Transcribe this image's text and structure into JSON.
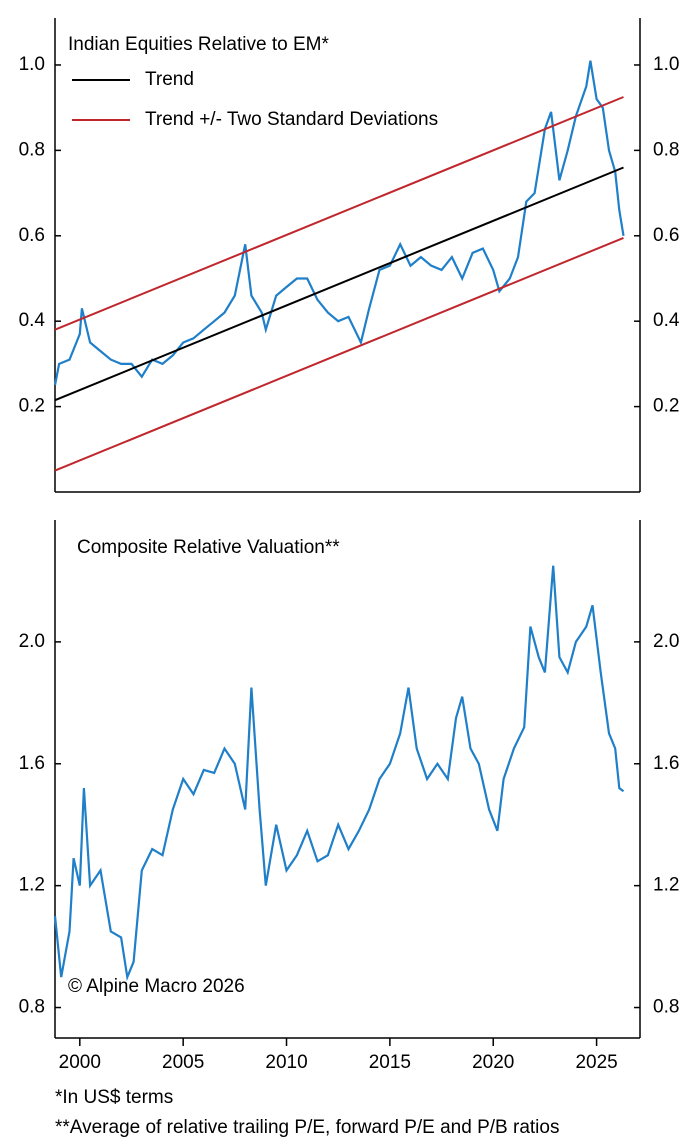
{
  "chart_data": [
    {
      "type": "line",
      "title": "Indian Equities Relative to EM*",
      "xlim": [
        1998.8,
        2027.1
      ],
      "ylim": [
        0,
        1.11
      ],
      "yticks": [
        0.2,
        0.4,
        0.6,
        0.8,
        {
          "value": 1,
          "label": "1.0"
        }
      ],
      "legend": "top-left",
      "series": [
        {
          "color": "#1f7fc8",
          "x": [
            1998.8,
            1999.0,
            1999.5,
            2000.0,
            2000.1,
            2000.5,
            2001.0,
            2001.5,
            2002.0,
            2002.5,
            2003.0,
            2003.5,
            2004.0,
            2004.5,
            2005.0,
            2005.5,
            2006.0,
            2006.5,
            2007.0,
            2007.5,
            2008.0,
            2008.3,
            2008.8,
            2009.0,
            2009.5,
            2010.0,
            2010.5,
            2011.0,
            2011.5,
            2012.0,
            2012.5,
            2013.0,
            2013.6,
            2014.0,
            2014.5,
            2015.0,
            2015.5,
            2016.0,
            2016.5,
            2017.0,
            2017.5,
            2018.0,
            2018.5,
            2019.0,
            2019.5,
            2020.0,
            2020.3,
            2020.8,
            2021.2,
            2021.6,
            2022.0,
            2022.5,
            2022.8,
            2023.2,
            2023.6,
            2024.0,
            2024.5,
            2024.7,
            2025.0,
            2025.3,
            2025.6,
            2025.9,
            2026.1,
            2026.3
          ],
          "values": [
            0.25,
            0.3,
            0.31,
            0.37,
            0.43,
            0.35,
            0.33,
            0.31,
            0.3,
            0.3,
            0.27,
            0.31,
            0.3,
            0.32,
            0.35,
            0.36,
            0.38,
            0.4,
            0.42,
            0.46,
            0.58,
            0.46,
            0.42,
            0.38,
            0.46,
            0.48,
            0.5,
            0.5,
            0.45,
            0.42,
            0.4,
            0.41,
            0.35,
            0.43,
            0.52,
            0.53,
            0.58,
            0.53,
            0.55,
            0.53,
            0.52,
            0.55,
            0.5,
            0.56,
            0.57,
            0.52,
            0.47,
            0.5,
            0.55,
            0.68,
            0.7,
            0.85,
            0.89,
            0.73,
            0.8,
            0.88,
            0.95,
            1.01,
            0.92,
            0.9,
            0.8,
            0.75,
            0.66,
            0.6
          ]
        },
        {
          "name": "Trend",
          "color": "#000000",
          "x": [
            1998.8,
            2026.3
          ],
          "values": [
            0.215,
            0.76
          ]
        },
        {
          "name": "Trend +/- Two Standard Deviations",
          "color": "#c0272d",
          "x": [
            1998.8,
            2026.3
          ],
          "values": [
            0.38,
            0.925
          ],
          "lower": [
            0.05,
            0.595
          ]
        }
      ]
    },
    {
      "type": "line",
      "title": "Composite Relative Valuation**",
      "annotation": "© Alpine Macro 2026",
      "xlim": [
        1998.8,
        2027.1
      ],
      "xticks": [
        2000,
        2005,
        2010,
        2015,
        2020,
        2025
      ],
      "ylim": [
        0.7,
        2.4
      ],
      "yticks": [
        0.8,
        1.2,
        1.6,
        {
          "value": 2,
          "label": "2.0"
        }
      ],
      "series": [
        {
          "color": "#1f7fc8",
          "x": [
            1998.8,
            1999.1,
            1999.5,
            1999.7,
            2000.0,
            2000.2,
            2000.5,
            2001.0,
            2001.5,
            2002.0,
            2002.3,
            2002.6,
            2003.0,
            2003.5,
            2004.0,
            2004.5,
            2005.0,
            2005.5,
            2006.0,
            2006.5,
            2007.0,
            2007.5,
            2008.0,
            2008.3,
            2008.7,
            2009.0,
            2009.5,
            2010.0,
            2010.5,
            2011.0,
            2011.5,
            2012.0,
            2012.5,
            2013.0,
            2013.5,
            2014.0,
            2014.5,
            2015.0,
            2015.5,
            2015.9,
            2016.3,
            2016.8,
            2017.3,
            2017.8,
            2018.2,
            2018.5,
            2018.9,
            2019.3,
            2019.8,
            2020.2,
            2020.5,
            2021.0,
            2021.5,
            2021.8,
            2022.2,
            2022.5,
            2022.9,
            2023.2,
            2023.6,
            2024.0,
            2024.5,
            2024.8,
            2025.2,
            2025.6,
            2025.9,
            2026.1,
            2026.3
          ],
          "values": [
            1.1,
            0.9,
            1.05,
            1.29,
            1.2,
            1.52,
            1.2,
            1.25,
            1.05,
            1.03,
            0.9,
            0.95,
            1.25,
            1.32,
            1.3,
            1.45,
            1.55,
            1.5,
            1.58,
            1.57,
            1.65,
            1.6,
            1.45,
            1.85,
            1.45,
            1.2,
            1.4,
            1.25,
            1.3,
            1.38,
            1.28,
            1.3,
            1.4,
            1.32,
            1.38,
            1.45,
            1.55,
            1.6,
            1.7,
            1.85,
            1.65,
            1.55,
            1.6,
            1.55,
            1.75,
            1.82,
            1.65,
            1.6,
            1.45,
            1.38,
            1.55,
            1.65,
            1.72,
            2.05,
            1.95,
            1.9,
            2.25,
            1.95,
            1.9,
            2.0,
            2.05,
            2.12,
            1.9,
            1.7,
            1.65,
            1.52,
            1.51
          ]
        }
      ]
    }
  ],
  "notes": [
    "*In US$ terms",
    "**Average of relative trailing P/E, forward P/E and P/B ratios"
  ]
}
